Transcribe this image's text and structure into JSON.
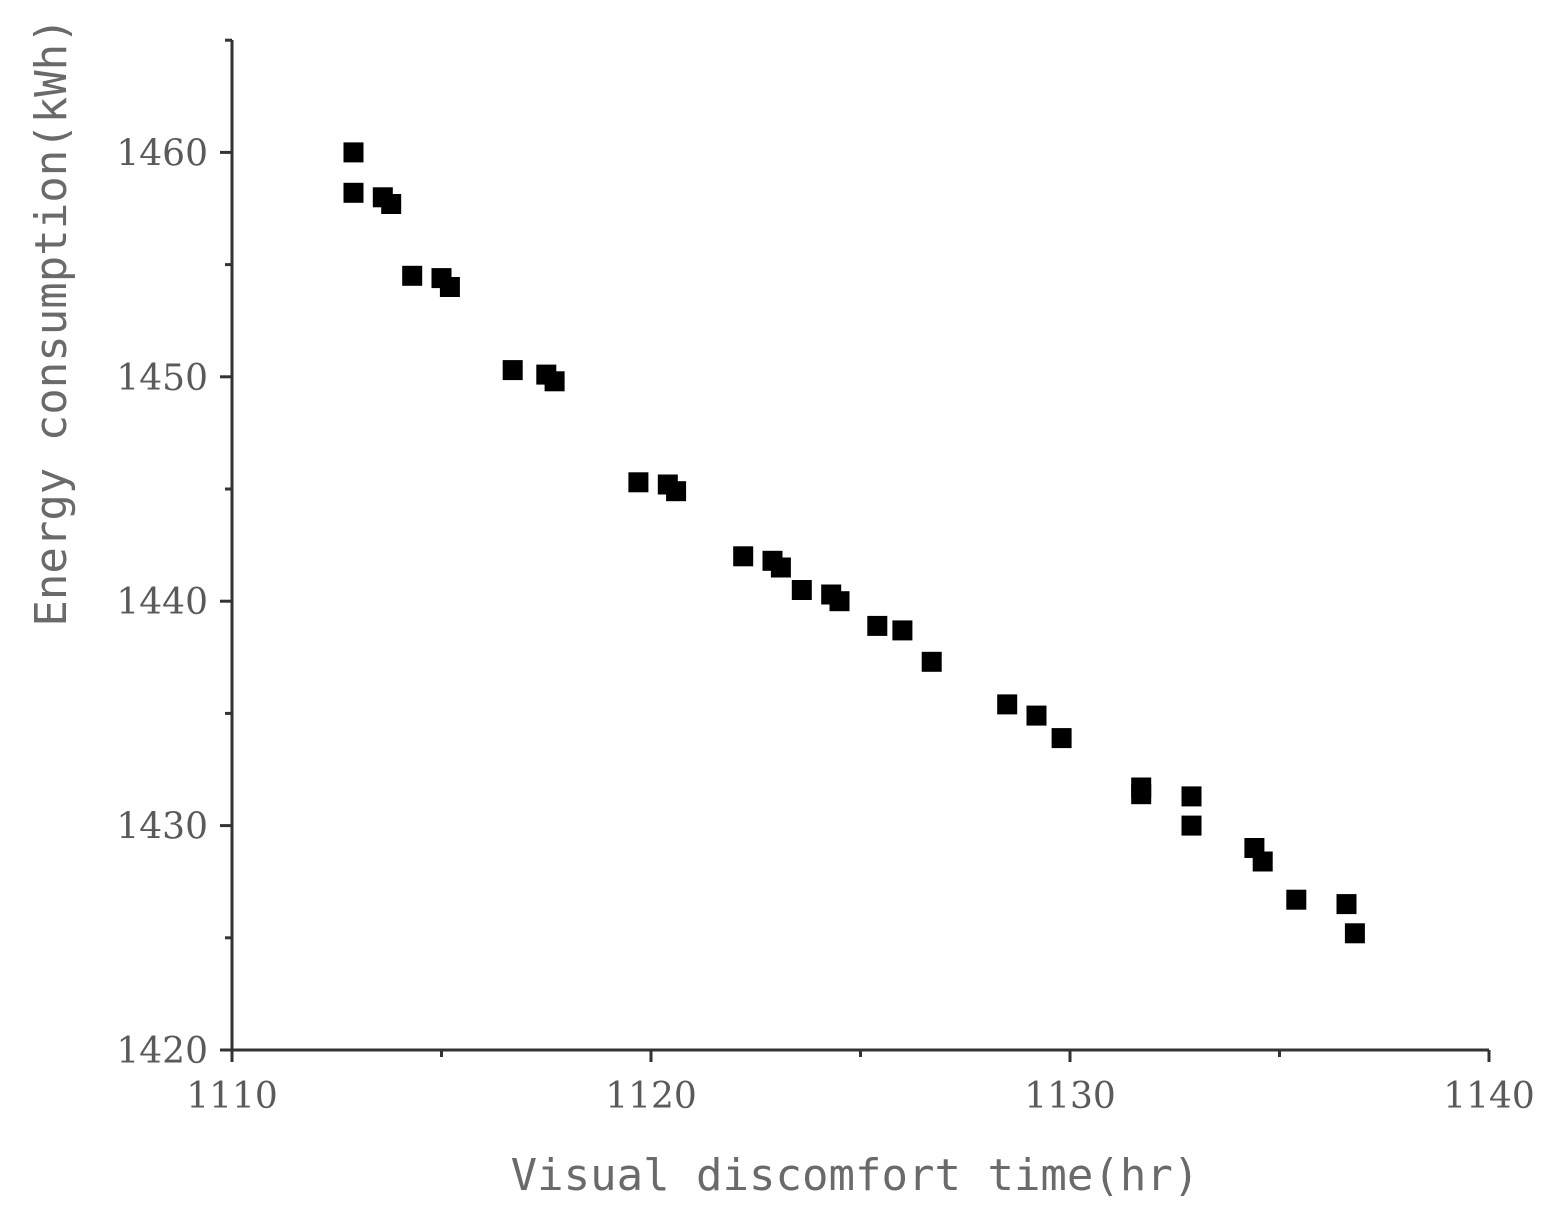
{
  "chart_data": {
    "type": "scatter",
    "title": "",
    "xlabel": "Visual discomfort time(hr)",
    "ylabel": "Energy consumption(kWh)",
    "xlim": [
      1110,
      1140
    ],
    "ylim": [
      1420,
      1465
    ],
    "x_ticks": [
      1110,
      1120,
      1130,
      1140
    ],
    "y_ticks": [
      1420,
      1430,
      1440,
      1450,
      1460
    ],
    "x_tick_labels": [
      "1110",
      "1120",
      "1130",
      "1140"
    ],
    "y_tick_labels": [
      "1420",
      "1430",
      "1440",
      "1450",
      "1460"
    ],
    "grid": false,
    "legend": "none",
    "marker": "square",
    "marker_color": "#000000",
    "points": [
      {
        "x": 1112.9,
        "y": 1460.0
      },
      {
        "x": 1112.9,
        "y": 1458.2
      },
      {
        "x": 1113.6,
        "y": 1458.0
      },
      {
        "x": 1113.8,
        "y": 1457.7
      },
      {
        "x": 1114.3,
        "y": 1454.5
      },
      {
        "x": 1115.0,
        "y": 1454.4
      },
      {
        "x": 1115.2,
        "y": 1454.0
      },
      {
        "x": 1116.7,
        "y": 1450.3
      },
      {
        "x": 1117.5,
        "y": 1450.1
      },
      {
        "x": 1117.7,
        "y": 1449.8
      },
      {
        "x": 1119.7,
        "y": 1445.3
      },
      {
        "x": 1120.4,
        "y": 1445.2
      },
      {
        "x": 1120.6,
        "y": 1444.9
      },
      {
        "x": 1122.2,
        "y": 1442.0
      },
      {
        "x": 1122.9,
        "y": 1441.8
      },
      {
        "x": 1123.1,
        "y": 1441.5
      },
      {
        "x": 1123.6,
        "y": 1440.5
      },
      {
        "x": 1124.3,
        "y": 1440.3
      },
      {
        "x": 1124.5,
        "y": 1440.0
      },
      {
        "x": 1125.4,
        "y": 1438.9
      },
      {
        "x": 1126.0,
        "y": 1438.7
      },
      {
        "x": 1126.7,
        "y": 1437.3
      },
      {
        "x": 1128.5,
        "y": 1435.4
      },
      {
        "x": 1129.2,
        "y": 1434.9
      },
      {
        "x": 1129.8,
        "y": 1433.9
      },
      {
        "x": 1131.7,
        "y": 1431.7
      },
      {
        "x": 1131.7,
        "y": 1431.4
      },
      {
        "x": 1132.9,
        "y": 1431.3
      },
      {
        "x": 1132.9,
        "y": 1430.0
      },
      {
        "x": 1134.4,
        "y": 1429.0
      },
      {
        "x": 1134.6,
        "y": 1428.4
      },
      {
        "x": 1135.4,
        "y": 1426.7
      },
      {
        "x": 1136.6,
        "y": 1426.5
      },
      {
        "x": 1136.8,
        "y": 1425.2
      }
    ]
  }
}
